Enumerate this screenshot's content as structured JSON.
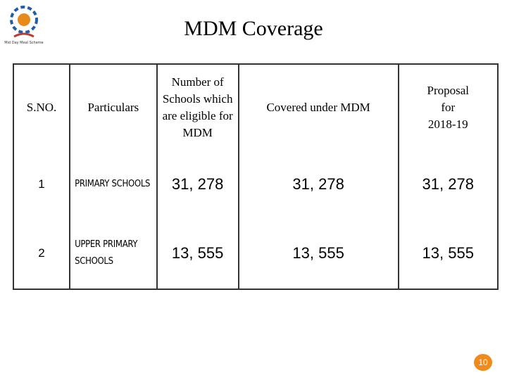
{
  "logo": {
    "caption": "Mid Day Meal Scheme"
  },
  "header": {
    "title": "MDM Coverage"
  },
  "table": {
    "columns": [
      "S.NO.",
      "Particulars",
      "Number of Schools which are eligible for MDM",
      "Covered under MDM",
      "Proposal for 2018-19"
    ],
    "rows": [
      [
        "1",
        "PRIMARY SCHOOLS",
        "31, 278",
        "31, 278",
        "31, 278"
      ],
      [
        "2",
        "UPPER PRIMARY SCHOOLS",
        "13, 555",
        "13, 555",
        "13, 555"
      ]
    ]
  },
  "page_number": "10"
}
